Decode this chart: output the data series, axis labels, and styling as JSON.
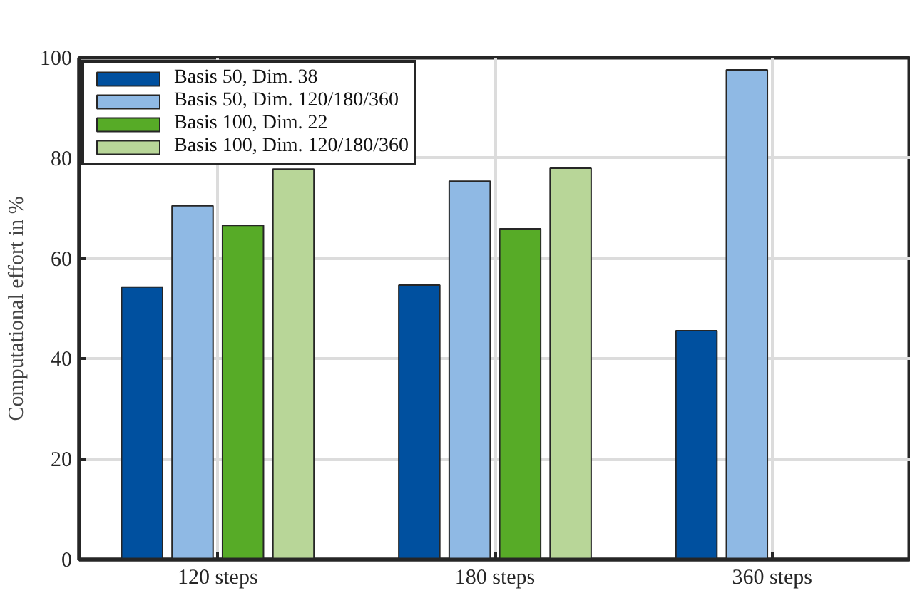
{
  "chart_data": {
    "type": "bar",
    "ylabel": "Computational effort in %",
    "categories": [
      "120 steps",
      "180 steps",
      "360 steps"
    ],
    "series": [
      {
        "name": "Basis 50, Dim. 38",
        "color": "#00509f",
        "values": [
          54.3,
          54.7,
          45.6
        ]
      },
      {
        "name": "Basis 50, Dim. 120/180/360",
        "color": "#8fb9e4",
        "values": [
          70.5,
          75.4,
          97.6
        ]
      },
      {
        "name": "Basis 100, Dim. 22",
        "color": "#57ab27",
        "values": [
          66.6,
          65.9,
          null
        ]
      },
      {
        "name": "Basis 100, Dim. 120/180/360",
        "color": "#b8d698",
        "values": [
          77.8,
          78.0,
          null
        ]
      }
    ],
    "ylim": [
      0,
      100
    ],
    "yticks": [
      0,
      20,
      40,
      60,
      80,
      100
    ],
    "grid": true,
    "legend": "top left"
  }
}
